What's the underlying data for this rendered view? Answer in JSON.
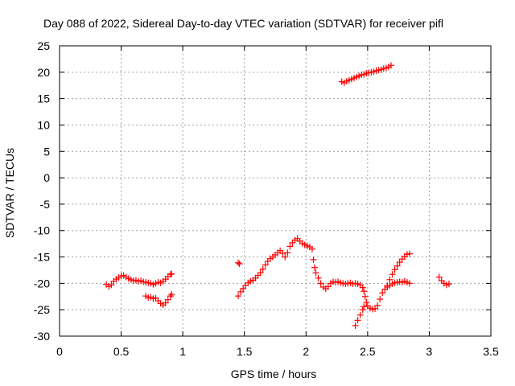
{
  "chart_data": {
    "type": "scatter",
    "title": "Day 088 of 2022, Sidereal Day-to-day VTEC variation (SDTVAR) for receiver pifl",
    "xlabel": "GPS time / hours",
    "ylabel": "SDTVAR / TECUs",
    "xlim": [
      0,
      3.5
    ],
    "ylim": [
      -30,
      25
    ],
    "x_ticks": [
      "0",
      "0.5",
      "1",
      "1.5",
      "2",
      "2.5",
      "3",
      "3.5"
    ],
    "x_tick_values": [
      0,
      0.5,
      1,
      1.5,
      2,
      2.5,
      3,
      3.5
    ],
    "y_ticks": [
      "25",
      "20",
      "15",
      "10",
      "5",
      "0",
      "-5",
      "-10",
      "-15",
      "-20",
      "-25",
      "-30"
    ],
    "y_tick_values": [
      25,
      20,
      15,
      10,
      5,
      0,
      -5,
      -10,
      -15,
      -20,
      -25,
      -30
    ],
    "grid": true,
    "marker": "+",
    "marker_color": "#ff0000",
    "series": [
      {
        "points": [
          [
            0.38,
            -20.2
          ],
          [
            0.4,
            -20.6
          ],
          [
            0.42,
            -20.3
          ],
          [
            0.44,
            -19.6
          ],
          [
            0.46,
            -19.2
          ],
          [
            0.48,
            -18.9
          ],
          [
            0.5,
            -18.6
          ],
          [
            0.52,
            -18.5
          ],
          [
            0.54,
            -18.8
          ],
          [
            0.56,
            -19.1
          ],
          [
            0.58,
            -19.3
          ],
          [
            0.6,
            -19.5
          ],
          [
            0.62,
            -19.4
          ],
          [
            0.64,
            -19.6
          ],
          [
            0.66,
            -19.5
          ],
          [
            0.68,
            -19.7
          ],
          [
            0.7,
            -19.8
          ],
          [
            0.72,
            -19.9
          ],
          [
            0.74,
            -20.0
          ],
          [
            0.76,
            -20.2
          ],
          [
            0.78,
            -20.0
          ],
          [
            0.8,
            -19.8
          ],
          [
            0.82,
            -19.9
          ],
          [
            0.84,
            -19.6
          ],
          [
            0.86,
            -19.2
          ],
          [
            0.88,
            -18.7
          ],
          [
            0.9,
            -18.3
          ],
          [
            0.91,
            -18.2
          ],
          [
            0.7,
            -22.4
          ],
          [
            0.72,
            -22.7
          ],
          [
            0.74,
            -22.6
          ],
          [
            0.76,
            -22.9
          ],
          [
            0.78,
            -22.8
          ],
          [
            0.8,
            -23.3
          ],
          [
            0.82,
            -23.8
          ],
          [
            0.84,
            -24.1
          ],
          [
            0.86,
            -23.7
          ],
          [
            0.88,
            -23.1
          ],
          [
            0.9,
            -22.4
          ],
          [
            0.91,
            -22.1
          ],
          [
            1.45,
            -16.1
          ],
          [
            1.46,
            -16.3
          ],
          [
            1.45,
            -22.4
          ],
          [
            1.47,
            -21.6
          ],
          [
            1.49,
            -21.0
          ],
          [
            1.51,
            -20.4
          ],
          [
            1.53,
            -19.9
          ],
          [
            1.55,
            -19.6
          ],
          [
            1.57,
            -19.4
          ],
          [
            1.59,
            -19.0
          ],
          [
            1.61,
            -18.5
          ],
          [
            1.63,
            -18.0
          ],
          [
            1.65,
            -17.3
          ],
          [
            1.67,
            -16.5
          ],
          [
            1.69,
            -15.8
          ],
          [
            1.71,
            -15.3
          ],
          [
            1.73,
            -15.0
          ],
          [
            1.75,
            -14.6
          ],
          [
            1.77,
            -14.2
          ],
          [
            1.79,
            -13.8
          ],
          [
            1.81,
            -14.3
          ],
          [
            1.83,
            -15.0
          ],
          [
            1.85,
            -14.2
          ],
          [
            1.87,
            -13.0
          ],
          [
            1.89,
            -12.3
          ],
          [
            1.91,
            -11.8
          ],
          [
            1.93,
            -11.5
          ],
          [
            1.95,
            -12.0
          ],
          [
            1.97,
            -12.4
          ],
          [
            1.99,
            -12.7
          ],
          [
            2.01,
            -12.9
          ],
          [
            2.03,
            -13.1
          ],
          [
            2.05,
            -13.5
          ],
          [
            2.06,
            -15.5
          ],
          [
            2.07,
            -17.0
          ],
          [
            2.08,
            -18.0
          ],
          [
            2.1,
            -19.0
          ],
          [
            2.12,
            -20.0
          ],
          [
            2.14,
            -20.7
          ],
          [
            2.16,
            -21.0
          ],
          [
            2.18,
            -20.6
          ],
          [
            2.2,
            -20.0
          ],
          [
            2.22,
            -19.7
          ],
          [
            2.24,
            -19.8
          ],
          [
            2.26,
            -19.7
          ],
          [
            2.28,
            -19.9
          ],
          [
            2.3,
            -20.0
          ],
          [
            2.32,
            -20.1
          ],
          [
            2.34,
            -20.0
          ],
          [
            2.36,
            -19.9
          ],
          [
            2.38,
            -20.1
          ],
          [
            2.4,
            -20.0
          ],
          [
            2.42,
            -20.1
          ],
          [
            2.44,
            -20.3
          ],
          [
            2.46,
            -20.8
          ],
          [
            2.47,
            -21.5
          ],
          [
            2.48,
            -22.5
          ],
          [
            2.49,
            -23.6
          ],
          [
            2.5,
            -24.3
          ],
          [
            2.52,
            -24.7
          ],
          [
            2.54,
            -24.9
          ],
          [
            2.56,
            -24.8
          ],
          [
            2.58,
            -24.2
          ],
          [
            2.6,
            -23.0
          ],
          [
            2.62,
            -21.8
          ],
          [
            2.64,
            -21.1
          ],
          [
            2.66,
            -20.7
          ],
          [
            2.68,
            -20.4
          ],
          [
            2.7,
            -20.1
          ],
          [
            2.72,
            -19.9
          ],
          [
            2.74,
            -19.8
          ],
          [
            2.76,
            -19.7
          ],
          [
            2.78,
            -19.8
          ],
          [
            2.8,
            -19.6
          ],
          [
            2.82,
            -19.8
          ],
          [
            2.84,
            -20.0
          ],
          [
            2.4,
            -28.0
          ],
          [
            2.42,
            -27.0
          ],
          [
            2.44,
            -26.0
          ],
          [
            2.46,
            -25.0
          ],
          [
            2.47,
            -24.4
          ],
          [
            2.66,
            -20.4
          ],
          [
            2.68,
            -19.3
          ],
          [
            2.7,
            -18.3
          ],
          [
            2.72,
            -17.4
          ],
          [
            2.74,
            -16.7
          ],
          [
            2.76,
            -16.0
          ],
          [
            2.78,
            -15.4
          ],
          [
            2.8,
            -14.9
          ],
          [
            2.82,
            -14.5
          ],
          [
            2.84,
            -14.4
          ],
          [
            2.29,
            18.2
          ],
          [
            2.31,
            18.0
          ],
          [
            2.33,
            18.3
          ],
          [
            2.35,
            18.5
          ],
          [
            2.37,
            18.7
          ],
          [
            2.39,
            18.9
          ],
          [
            2.41,
            19.1
          ],
          [
            2.43,
            19.3
          ],
          [
            2.45,
            19.5
          ],
          [
            2.47,
            19.6
          ],
          [
            2.49,
            19.8
          ],
          [
            2.51,
            19.9
          ],
          [
            2.53,
            20.0
          ],
          [
            2.55,
            20.1
          ],
          [
            2.57,
            20.3
          ],
          [
            2.59,
            20.4
          ],
          [
            2.61,
            20.5
          ],
          [
            2.63,
            20.7
          ],
          [
            2.65,
            20.8
          ],
          [
            2.67,
            21.0
          ],
          [
            2.69,
            21.3
          ],
          [
            3.08,
            -18.8
          ],
          [
            3.1,
            -19.5
          ],
          [
            3.12,
            -20.0
          ],
          [
            3.14,
            -20.3
          ],
          [
            3.16,
            -20.1
          ]
        ]
      }
    ]
  }
}
